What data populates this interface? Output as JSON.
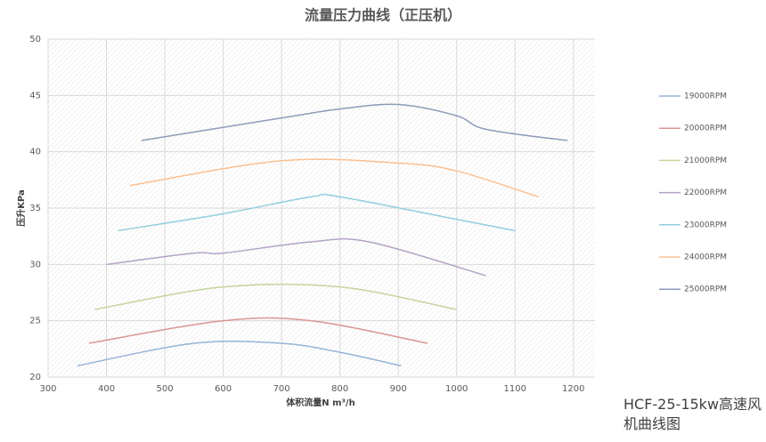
{
  "chart_data": {
    "type": "line",
    "title": "流量压力曲线（正压机）",
    "x_label": "体积流量N m³/h",
    "y_label": "压升KPa",
    "xlim": [
      300,
      1237
    ],
    "xticks": [
      300,
      400,
      500,
      600,
      700,
      800,
      900,
      1000,
      1100,
      1200
    ],
    "ylim": [
      20,
      50
    ],
    "yticks": [
      20,
      25,
      30,
      35,
      40,
      45,
      50
    ],
    "grid": true,
    "legend": "right",
    "series": [
      {
        "name": "19000RPM",
        "color": "#95b3d7",
        "x": [
          350,
          550,
          700,
          800,
          905
        ],
        "values": [
          21,
          23,
          23,
          22.2,
          21
        ]
      },
      {
        "name": "20000RPM",
        "color": "#d99694",
        "x": [
          370,
          600,
          750,
          950
        ],
        "values": [
          23,
          25,
          25,
          23
        ]
      },
      {
        "name": "21000RPM",
        "color": "#c3d69b",
        "x": [
          380,
          600,
          800,
          1000
        ],
        "values": [
          26,
          28,
          28,
          26
        ]
      },
      {
        "name": "22000RPM",
        "color": "#b3a2c7",
        "x": [
          400,
          550,
          600,
          750,
          850,
          1050
        ],
        "values": [
          30,
          31,
          31,
          32,
          32,
          29
        ]
      },
      {
        "name": "23000RPM",
        "color": "#93cddd",
        "x": [
          420,
          600,
          750,
          800,
          1000,
          1100
        ],
        "values": [
          33,
          34.5,
          36,
          36,
          34,
          33
        ]
      },
      {
        "name": "24000RPM",
        "color": "#fac090",
        "x": [
          440,
          700,
          900,
          1000,
          1140
        ],
        "values": [
          37,
          39.2,
          39,
          38.3,
          36
        ]
      },
      {
        "name": "25000RPM",
        "color": "#8e9bb8",
        "x": [
          460,
          700,
          800,
          900,
          1000,
          1050,
          1190
        ],
        "values": [
          41,
          43,
          43.8,
          44.2,
          43.2,
          42,
          41
        ]
      }
    ],
    "caption": "HCF-25-15kw高速风机曲线图"
  }
}
